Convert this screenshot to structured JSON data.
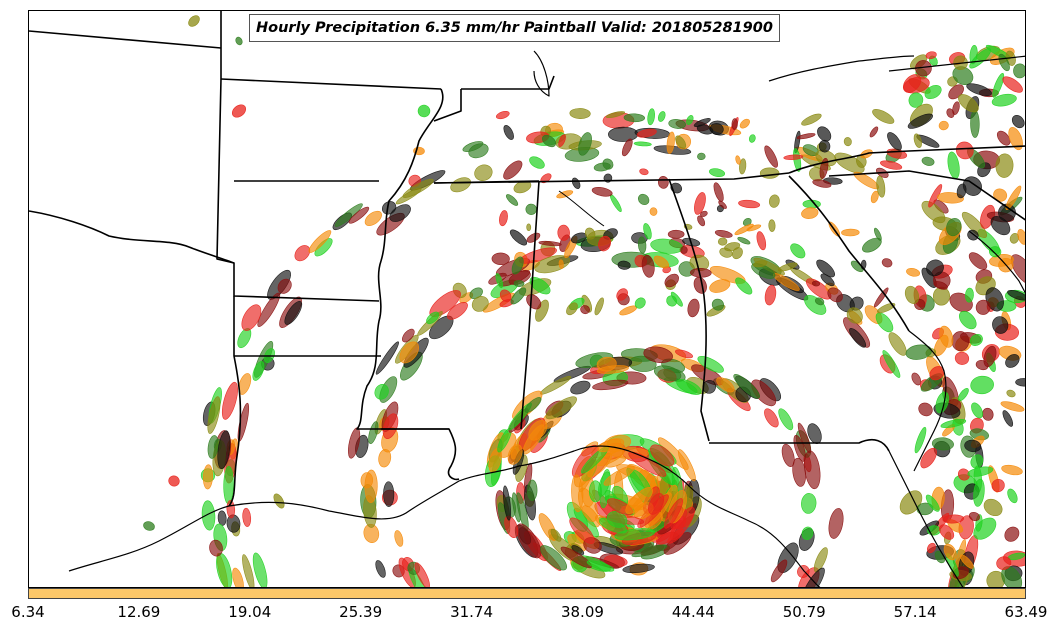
{
  "title": "Hourly Precipitation 6.35 mm/hr Paintball Valid: 201805281900",
  "colorbar": {
    "color": "#fdc869",
    "tick_labels": [
      "6.34",
      "12.69",
      "19.04",
      "25.39",
      "31.74",
      "38.09",
      "44.44",
      "50.79",
      "57.14",
      "63.49"
    ]
  },
  "palette": {
    "red": "#e8211b",
    "orange": "#f58a07",
    "green": "#1fd11f",
    "dark_green": "#2e7d1e",
    "olive": "#8a8a12",
    "dark_red": "#8b1010",
    "black": "#111111",
    "border": "#000000"
  }
}
